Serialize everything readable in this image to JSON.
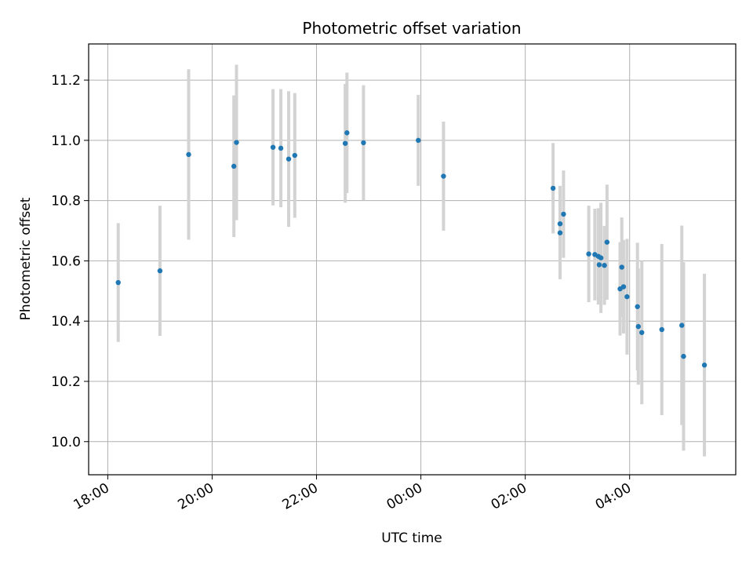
{
  "chart_data": {
    "type": "scatter",
    "title": "Photometric offset variation",
    "xlabel": "UTC time",
    "ylabel": "Photometric offset",
    "x_axis_type": "time",
    "x_start_date": "2019-01-01",
    "xlim": [
      "2019-01-01T17:38",
      "2019-01-02T06:02"
    ],
    "ylim": [
      9.89,
      11.32
    ],
    "x_ticks": [
      "18:00",
      "20:00",
      "22:00",
      "00:00",
      "02:00",
      "04:00"
    ],
    "x_tick_times": [
      "2019-01-01T18:00",
      "2019-01-01T20:00",
      "2019-01-01T22:00",
      "2019-01-02T00:00",
      "2019-01-02T02:00",
      "2019-01-02T04:00"
    ],
    "y_ticks": [
      10.0,
      10.2,
      10.4,
      10.6,
      10.8,
      11.0,
      11.2
    ],
    "grid": true,
    "marker_color": "#1f77b4",
    "errorbar_color": "#d3d3d3",
    "points": [
      {
        "x": "2019-01-01T18:12",
        "y": 10.528,
        "yerr": 0.197
      },
      {
        "x": "2019-01-01T19:00",
        "y": 10.567,
        "yerr": 0.216
      },
      {
        "x": "2019-01-01T19:33",
        "y": 10.953,
        "yerr": 0.283
      },
      {
        "x": "2019-01-01T20:25",
        "y": 10.914,
        "yerr": 0.235
      },
      {
        "x": "2019-01-01T20:28",
        "y": 10.993,
        "yerr": 0.258
      },
      {
        "x": "2019-01-01T21:10",
        "y": 10.977,
        "yerr": 0.193
      },
      {
        "x": "2019-01-01T21:19",
        "y": 10.974,
        "yerr": 0.196
      },
      {
        "x": "2019-01-01T21:28",
        "y": 10.938,
        "yerr": 0.225
      },
      {
        "x": "2019-01-01T21:35",
        "y": 10.95,
        "yerr": 0.207
      },
      {
        "x": "2019-01-01T22:33",
        "y": 10.99,
        "yerr": 0.197
      },
      {
        "x": "2019-01-01T22:35",
        "y": 11.025,
        "yerr": 0.2
      },
      {
        "x": "2019-01-01T22:54",
        "y": 10.992,
        "yerr": 0.191
      },
      {
        "x": "2019-01-01T23:57",
        "y": 11.0,
        "yerr": 0.151
      },
      {
        "x": "2019-01-02T00:26",
        "y": 10.881,
        "yerr": 0.181
      },
      {
        "x": "2019-01-02T02:32",
        "y": 10.841,
        "yerr": 0.15
      },
      {
        "x": "2019-01-02T02:40",
        "y": 10.723,
        "yerr": 0.126
      },
      {
        "x": "2019-01-02T02:40",
        "y": 10.693,
        "yerr": 0.154
      },
      {
        "x": "2019-01-02T02:44",
        "y": 10.755,
        "yerr": 0.145
      },
      {
        "x": "2019-01-02T03:13",
        "y": 10.623,
        "yerr": 0.16
      },
      {
        "x": "2019-01-02T03:20",
        "y": 10.621,
        "yerr": 0.152
      },
      {
        "x": "2019-01-02T03:24",
        "y": 10.615,
        "yerr": 0.16
      },
      {
        "x": "2019-01-02T03:25",
        "y": 10.587,
        "yerr": 0.131
      },
      {
        "x": "2019-01-02T03:27",
        "y": 10.61,
        "yerr": 0.183
      },
      {
        "x": "2019-01-02T03:31",
        "y": 10.585,
        "yerr": 0.131
      },
      {
        "x": "2019-01-02T03:34",
        "y": 10.662,
        "yerr": 0.191
      },
      {
        "x": "2019-01-02T03:49",
        "y": 10.507,
        "yerr": 0.155
      },
      {
        "x": "2019-01-02T03:51",
        "y": 10.579,
        "yerr": 0.165
      },
      {
        "x": "2019-01-02T03:53",
        "y": 10.514,
        "yerr": 0.155
      },
      {
        "x": "2019-01-02T03:57",
        "y": 10.481,
        "yerr": 0.192
      },
      {
        "x": "2019-01-02T04:09",
        "y": 10.448,
        "yerr": 0.212
      },
      {
        "x": "2019-01-02T04:10",
        "y": 10.382,
        "yerr": 0.193
      },
      {
        "x": "2019-01-02T04:14",
        "y": 10.362,
        "yerr": 0.238
      },
      {
        "x": "2019-01-02T04:37",
        "y": 10.372,
        "yerr": 0.284
      },
      {
        "x": "2019-01-02T05:00",
        "y": 10.386,
        "yerr": 0.331
      },
      {
        "x": "2019-01-02T05:02",
        "y": 10.283,
        "yerr": 0.313
      },
      {
        "x": "2019-01-02T05:26",
        "y": 10.254,
        "yerr": 0.303
      }
    ]
  }
}
